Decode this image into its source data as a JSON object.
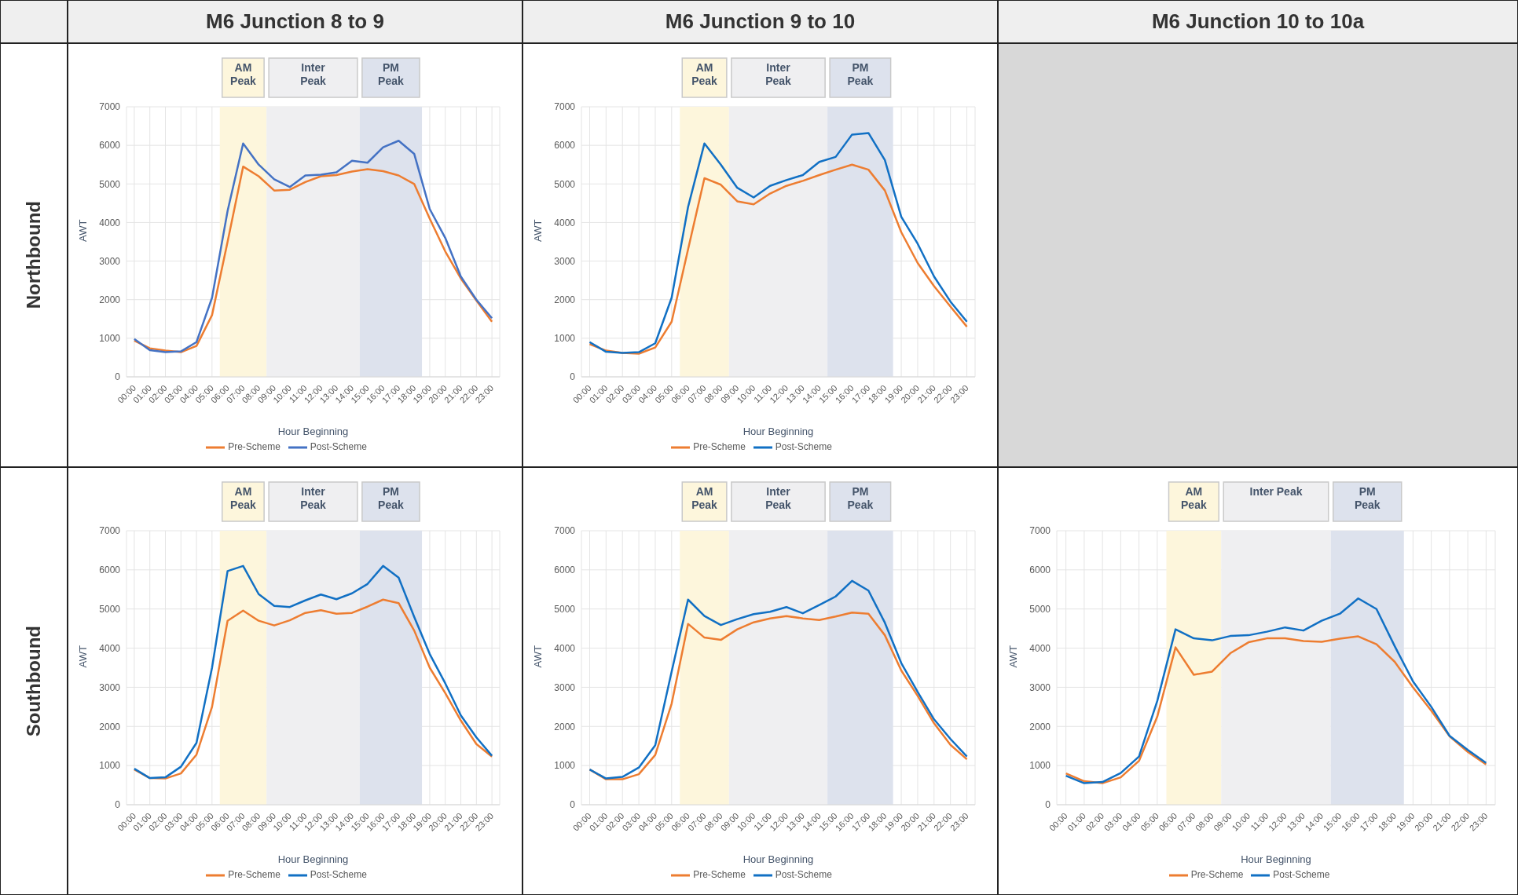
{
  "chart_data": [
    {
      "type": "line",
      "title": "M6 Junction 8 to 9",
      "subtitle": "Northbound",
      "xlabel": "Hour Beginning",
      "ylabel": "AWT",
      "categories": [
        "00:00",
        "01:00",
        "02:00",
        "03:00",
        "04:00",
        "05:00",
        "06:00",
        "07:00",
        "08:00",
        "09:00",
        "10:00",
        "11:00",
        "12:00",
        "13:00",
        "14:00",
        "15:00",
        "16:00",
        "17:00",
        "18:00",
        "19:00",
        "20:00",
        "21:00",
        "22:00",
        "23:00"
      ],
      "series": [
        {
          "name": "Pre-Scheme",
          "color": "#ed7d31",
          "values": [
            940,
            740,
            680,
            640,
            800,
            1600,
            3500,
            5450,
            5200,
            4830,
            4850,
            5050,
            5200,
            5230,
            5320,
            5380,
            5330,
            5220,
            5000,
            4100,
            3250,
            2550,
            1980,
            1430
          ]
        },
        {
          "name": "Post-Scheme",
          "color": "#4472c4",
          "values": [
            980,
            690,
            640,
            660,
            900,
            2050,
            4300,
            6050,
            5500,
            5120,
            4920,
            5220,
            5240,
            5300,
            5600,
            5550,
            5950,
            6120,
            5780,
            4350,
            3600,
            2600,
            2000,
            1520
          ]
        }
      ],
      "ylim": [
        0,
        7000
      ],
      "yticks": [
        0,
        1000,
        2000,
        3000,
        4000,
        5000,
        6000,
        7000
      ],
      "grid": true,
      "legend": "bottom",
      "marker": "none",
      "line_style": "solid",
      "bands": [
        {
          "axis": "x",
          "from": "06:00",
          "to": "08:00",
          "label": "AM Peak",
          "color": "#fdf6dc"
        },
        {
          "axis": "x",
          "from": "09:00",
          "to": "14:00",
          "label": "Inter Peak",
          "color": "#efeff1"
        },
        {
          "axis": "x",
          "from": "15:00",
          "to": "18:00",
          "label": "PM Peak",
          "color": "#dde2ed"
        }
      ]
    },
    {
      "type": "line",
      "title": "M6 Junction 9 to 10",
      "xlabel": "Hour Beginning",
      "ylabel": "AWT",
      "categories": [
        "00:00",
        "01:00",
        "02:00",
        "03:00",
        "04:00",
        "05:00",
        "06:00",
        "07:00",
        "08:00",
        "09:00",
        "10:00",
        "11:00",
        "12:00",
        "13:00",
        "14:00",
        "15:00",
        "16:00",
        "17:00",
        "18:00",
        "19:00",
        "20:00",
        "21:00",
        "22:00",
        "23:00"
      ],
      "series": [
        {
          "name": "Pre-Scheme",
          "color": "#ed7d31",
          "values": [
            850,
            680,
            620,
            600,
            760,
            1430,
            3300,
            5150,
            4980,
            4550,
            4470,
            4750,
            4950,
            5080,
            5230,
            5370,
            5500,
            5370,
            4830,
            3750,
            2950,
            2350,
            1820,
            1300
          ]
        },
        {
          "name": "Post-Scheme",
          "color": "#1170c4",
          "values": [
            900,
            650,
            620,
            640,
            870,
            2050,
            4400,
            6050,
            5500,
            4900,
            4650,
            4950,
            5100,
            5230,
            5570,
            5700,
            6280,
            6320,
            5620,
            4150,
            3450,
            2600,
            1950,
            1430
          ]
        }
      ],
      "ylim": [
        0,
        7000
      ],
      "yticks": [
        0,
        1000,
        2000,
        3000,
        4000,
        5000,
        6000,
        7000
      ],
      "grid": true,
      "legend": "bottom",
      "marker": "none",
      "line_style": "solid",
      "bands": [
        {
          "axis": "x",
          "from": "06:00",
          "to": "08:00",
          "label": "AM Peak",
          "color": "#fdf6dc"
        },
        {
          "axis": "x",
          "from": "09:00",
          "to": "14:00",
          "label": "Inter Peak",
          "color": "#efeff1"
        },
        {
          "axis": "x",
          "from": "15:00",
          "to": "18:00",
          "label": "PM Peak",
          "color": "#dde2ed"
        }
      ]
    },
    {
      "type": "line",
      "subtitle": "Southbound",
      "xlabel": "Hour Beginning",
      "ylabel": "AWT",
      "categories": [
        "00:00",
        "01:00",
        "02:00",
        "03:00",
        "04:00",
        "05:00",
        "06:00",
        "07:00",
        "08:00",
        "09:00",
        "10:00",
        "11:00",
        "12:00",
        "13:00",
        "14:00",
        "15:00",
        "16:00",
        "17:00",
        "18:00",
        "19:00",
        "20:00",
        "21:00",
        "22:00",
        "23:00"
      ],
      "series": [
        {
          "name": "Pre-Scheme",
          "color": "#ed7d31",
          "values": [
            900,
            680,
            670,
            800,
            1280,
            2500,
            4700,
            4960,
            4700,
            4580,
            4710,
            4900,
            4970,
            4880,
            4900,
            5060,
            5240,
            5150,
            4450,
            3500,
            2850,
            2150,
            1550,
            1230
          ]
        },
        {
          "name": "Post-Scheme",
          "color": "#1170c4",
          "values": [
            920,
            680,
            700,
            970,
            1580,
            3500,
            5970,
            6100,
            5380,
            5080,
            5050,
            5220,
            5370,
            5250,
            5400,
            5640,
            6100,
            5800,
            4800,
            3850,
            3100,
            2280,
            1720,
            1250
          ]
        }
      ],
      "ylim": [
        0,
        7000
      ],
      "yticks": [
        0,
        1000,
        2000,
        3000,
        4000,
        5000,
        6000,
        7000
      ],
      "grid": true,
      "legend": "bottom",
      "marker": "none",
      "line_style": "solid",
      "bands": [
        {
          "axis": "x",
          "from": "06:00",
          "to": "08:00",
          "label": "AM Peak",
          "color": "#fdf6dc"
        },
        {
          "axis": "x",
          "from": "09:00",
          "to": "14:00",
          "label": "Inter Peak",
          "color": "#efeff1"
        },
        {
          "axis": "x",
          "from": "15:00",
          "to": "18:00",
          "label": "PM Peak",
          "color": "#dde2ed"
        }
      ]
    },
    {
      "type": "line",
      "xlabel": "Hour Beginning",
      "ylabel": "AWT",
      "categories": [
        "00:00",
        "01:00",
        "02:00",
        "03:00",
        "04:00",
        "05:00",
        "06:00",
        "07:00",
        "08:00",
        "09:00",
        "10:00",
        "11:00",
        "12:00",
        "13:00",
        "14:00",
        "15:00",
        "16:00",
        "17:00",
        "18:00",
        "19:00",
        "20:00",
        "21:00",
        "22:00",
        "23:00"
      ],
      "series": [
        {
          "name": "Pre-Scheme",
          "color": "#ed7d31",
          "values": [
            900,
            650,
            650,
            780,
            1270,
            2580,
            4620,
            4270,
            4210,
            4480,
            4660,
            4760,
            4820,
            4760,
            4720,
            4810,
            4910,
            4880,
            4330,
            3430,
            2780,
            2080,
            1530,
            1160
          ]
        },
        {
          "name": "Post-Scheme",
          "color": "#1170c4",
          "values": [
            900,
            670,
            710,
            950,
            1520,
            3400,
            5240,
            4820,
            4590,
            4740,
            4870,
            4930,
            5050,
            4890,
            5100,
            5320,
            5720,
            5470,
            4650,
            3620,
            2880,
            2180,
            1680,
            1230
          ]
        }
      ],
      "ylim": [
        0,
        7000
      ],
      "yticks": [
        0,
        1000,
        2000,
        3000,
        4000,
        5000,
        6000,
        7000
      ],
      "grid": true,
      "legend": "bottom",
      "marker": "none",
      "line_style": "solid",
      "bands": [
        {
          "axis": "x",
          "from": "06:00",
          "to": "08:00",
          "label": "AM Peak",
          "color": "#fdf6dc"
        },
        {
          "axis": "x",
          "from": "09:00",
          "to": "14:00",
          "label": "Inter Peak",
          "color": "#efeff1"
        },
        {
          "axis": "x",
          "from": "15:00",
          "to": "18:00",
          "label": "PM Peak",
          "color": "#dde2ed"
        }
      ]
    },
    {
      "type": "line",
      "title": "M6 Junction 10 to 10a",
      "xlabel": "Hour Beginning",
      "ylabel": "AWT",
      "categories": [
        "00:00",
        "01:00",
        "02:00",
        "03:00",
        "04:00",
        "05:00",
        "06:00",
        "07:00",
        "08:00",
        "09:00",
        "10:00",
        "11:00",
        "12:00",
        "13:00",
        "14:00",
        "15:00",
        "16:00",
        "17:00",
        "18:00",
        "19:00",
        "20:00",
        "21:00",
        "22:00",
        "23:00"
      ],
      "series": [
        {
          "name": "Pre-Scheme",
          "color": "#ed7d31",
          "values": [
            800,
            600,
            550,
            700,
            1120,
            2250,
            4020,
            3320,
            3400,
            3870,
            4150,
            4250,
            4250,
            4180,
            4160,
            4240,
            4300,
            4100,
            3650,
            3000,
            2400,
            1750,
            1350,
            1030
          ]
        },
        {
          "name": "Post-Scheme",
          "color": "#1170c4",
          "values": [
            740,
            550,
            580,
            810,
            1230,
            2650,
            4480,
            4250,
            4200,
            4310,
            4330,
            4420,
            4530,
            4450,
            4700,
            4880,
            5270,
            5000,
            4050,
            3150,
            2500,
            1760,
            1400,
            1070
          ]
        }
      ],
      "ylim": [
        0,
        7000
      ],
      "yticks": [
        0,
        1000,
        2000,
        3000,
        4000,
        5000,
        6000,
        7000
      ],
      "grid": true,
      "legend": "bottom",
      "marker": "none",
      "line_style": "solid",
      "bands": [
        {
          "axis": "x",
          "from": "06:00",
          "to": "08:00",
          "label": "AM Peak",
          "color": "#fdf6dc"
        },
        {
          "axis": "x",
          "from": "09:00",
          "to": "14:00",
          "label": "Inter Peak",
          "color": "#efeff1"
        },
        {
          "axis": "x",
          "from": "15:00",
          "to": "18:00",
          "label": "PM Peak",
          "color": "#dde2ed"
        }
      ]
    }
  ]
}
